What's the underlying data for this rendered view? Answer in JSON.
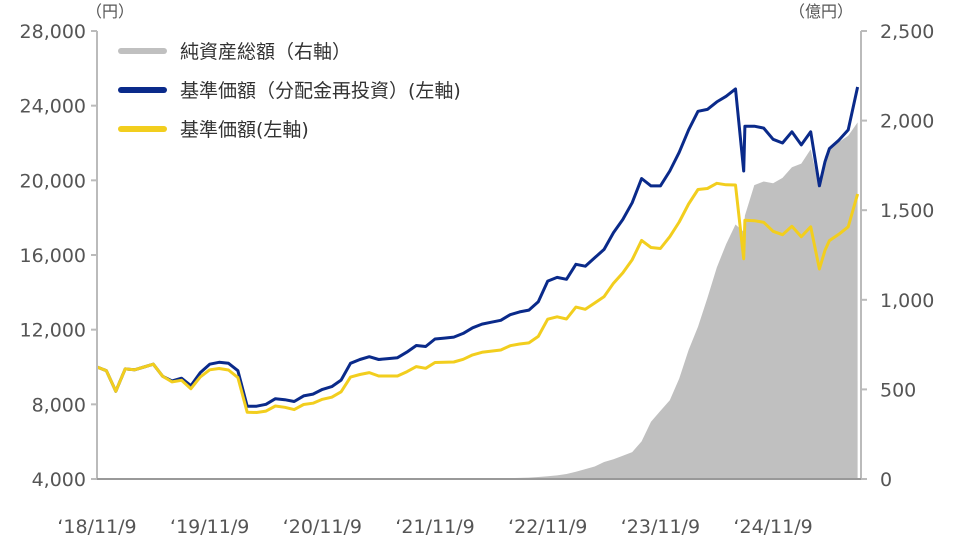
{
  "chart_data": {
    "type": "line+area",
    "left_axis": {
      "unit": "（円）",
      "ylim": [
        4000,
        28000
      ],
      "ticks": [
        4000,
        8000,
        12000,
        16000,
        20000,
        24000,
        28000
      ],
      "tick_labels": [
        "4,000",
        "8,000",
        "12,000",
        "16,000",
        "20,000",
        "24,000",
        "28,000"
      ]
    },
    "right_axis": {
      "unit": "（億円）",
      "ylim": [
        0,
        2500
      ],
      "ticks": [
        0,
        500,
        1000,
        1500,
        2000,
        2500
      ],
      "tick_labels": [
        "0",
        "500",
        "1,000",
        "1,500",
        "2,000",
        "2,500"
      ]
    },
    "x_axis": {
      "ticks": [
        "2018-11-09",
        "2019-11-09",
        "2020-11-09",
        "2021-11-09",
        "2022-11-09",
        "2023-11-09",
        "2024-11-09"
      ],
      "tick_labels": [
        "‘18/11/9",
        "‘19/11/9",
        "‘20/11/9",
        "‘21/11/9",
        "‘22/11/9",
        "‘23/11/9",
        "‘24/11/9"
      ],
      "xlim": [
        "2018-11-09",
        "2025-08-20"
      ]
    },
    "grid": false,
    "legend": {
      "placement": "top-left"
    },
    "x": [
      "2018-11-09",
      "2018-12-09",
      "2019-01-09",
      "2019-02-09",
      "2019-03-09",
      "2019-04-09",
      "2019-05-09",
      "2019-06-09",
      "2019-07-09",
      "2019-08-09",
      "2019-09-09",
      "2019-10-09",
      "2019-11-09",
      "2019-12-09",
      "2020-01-09",
      "2020-02-09",
      "2020-03-09",
      "2020-04-09",
      "2020-05-09",
      "2020-06-09",
      "2020-07-09",
      "2020-08-09",
      "2020-09-09",
      "2020-10-09",
      "2020-11-09",
      "2020-12-09",
      "2021-01-09",
      "2021-02-09",
      "2021-03-09",
      "2021-04-09",
      "2021-05-09",
      "2021-06-09",
      "2021-07-09",
      "2021-08-09",
      "2021-09-09",
      "2021-10-09",
      "2021-11-09",
      "2021-12-09",
      "2022-01-09",
      "2022-02-09",
      "2022-03-09",
      "2022-04-09",
      "2022-05-09",
      "2022-06-09",
      "2022-07-09",
      "2022-08-09",
      "2022-09-09",
      "2022-10-09",
      "2022-11-09",
      "2022-12-09",
      "2023-01-09",
      "2023-02-09",
      "2023-03-09",
      "2023-04-09",
      "2023-05-09",
      "2023-06-09",
      "2023-07-09",
      "2023-08-09",
      "2023-09-09",
      "2023-10-09",
      "2023-11-09",
      "2023-12-09",
      "2024-01-09",
      "2024-02-09",
      "2024-03-09",
      "2024-04-09",
      "2024-05-09",
      "2024-06-09",
      "2024-07-09",
      "2024-08-05",
      "2024-08-09",
      "2024-09-09",
      "2024-10-09",
      "2024-11-09",
      "2024-12-09",
      "2025-01-09",
      "2025-02-09",
      "2025-03-09",
      "2025-04-07",
      "2025-04-25",
      "2025-05-09",
      "2025-06-09",
      "2025-07-09",
      "2025-08-09"
    ],
    "series": [
      {
        "name": "純資産総額（右軸）",
        "axis": "right",
        "kind": "area",
        "color": "#c0c0c0",
        "values": [
          0,
          0,
          0,
          0,
          0,
          0,
          1,
          1,
          1,
          1,
          1,
          1,
          1,
          1,
          1,
          1,
          1,
          1,
          1,
          1,
          1,
          1,
          1,
          1,
          1,
          1,
          1,
          1,
          1,
          1,
          1,
          2,
          2,
          2,
          2,
          2,
          2,
          2,
          2,
          2,
          2,
          3,
          3,
          4,
          5,
          6,
          8,
          11,
          15,
          20,
          28,
          40,
          55,
          70,
          95,
          110,
          130,
          150,
          210,
          320,
          380,
          440,
          560,
          720,
          850,
          1010,
          1180,
          1310,
          1420,
          1380,
          1470,
          1640,
          1660,
          1650,
          1680,
          1740,
          1760,
          1840,
          1620,
          1800,
          1850,
          1880,
          1915,
          1990
        ]
      },
      {
        "name": "基準価額（分配金再投資）(左軸)",
        "axis": "left",
        "kind": "line",
        "color": "#0a2a8a",
        "values": [
          10000,
          9800,
          8700,
          9900,
          9850,
          10000,
          10150,
          9500,
          9250,
          9400,
          9000,
          9700,
          10150,
          10250,
          10200,
          9800,
          7900,
          7900,
          8000,
          8300,
          8250,
          8150,
          8450,
          8550,
          8800,
          8950,
          9300,
          10200,
          10400,
          10550,
          10400,
          10450,
          10500,
          10800,
          11150,
          11100,
          11500,
          11550,
          11600,
          11800,
          12100,
          12300,
          12400,
          12500,
          12800,
          12950,
          13050,
          13500,
          14600,
          14800,
          14700,
          15500,
          15400,
          15850,
          16300,
          17200,
          17900,
          18800,
          20100,
          19700,
          19700,
          20500,
          21500,
          22700,
          23700,
          23800,
          24200,
          24500,
          24900,
          20500,
          22900,
          22900,
          22800,
          22200,
          22000,
          22600,
          21900,
          22600,
          19700,
          21000,
          21700,
          22150,
          22700,
          25000
        ]
      },
      {
        "name": "基準価額(左軸)",
        "axis": "left",
        "kind": "line",
        "color": "#f2ce1e",
        "values": [
          10000,
          9800,
          8700,
          9900,
          9850,
          10000,
          10150,
          9500,
          9200,
          9290,
          8840,
          9470,
          9850,
          9920,
          9840,
          9430,
          7580,
          7560,
          7640,
          7910,
          7840,
          7720,
          7990,
          8060,
          8270,
          8380,
          8670,
          9460,
          9600,
          9700,
          9520,
          9520,
          9520,
          9750,
          10020,
          9930,
          10240,
          10250,
          10270,
          10410,
          10650,
          10790,
          10850,
          10910,
          11140,
          11230,
          11290,
          11640,
          12560,
          12690,
          12570,
          13210,
          13090,
          13430,
          13770,
          14490,
          15040,
          15750,
          16780,
          16400,
          16350,
          16980,
          17770,
          18730,
          19510,
          19560,
          19840,
          19760,
          19750,
          15800,
          17860,
          17840,
          17750,
          17270,
          17090,
          17540,
          16980,
          17510,
          15250,
          16250,
          16770,
          17110,
          17510,
          19270
        ]
      }
    ]
  }
}
